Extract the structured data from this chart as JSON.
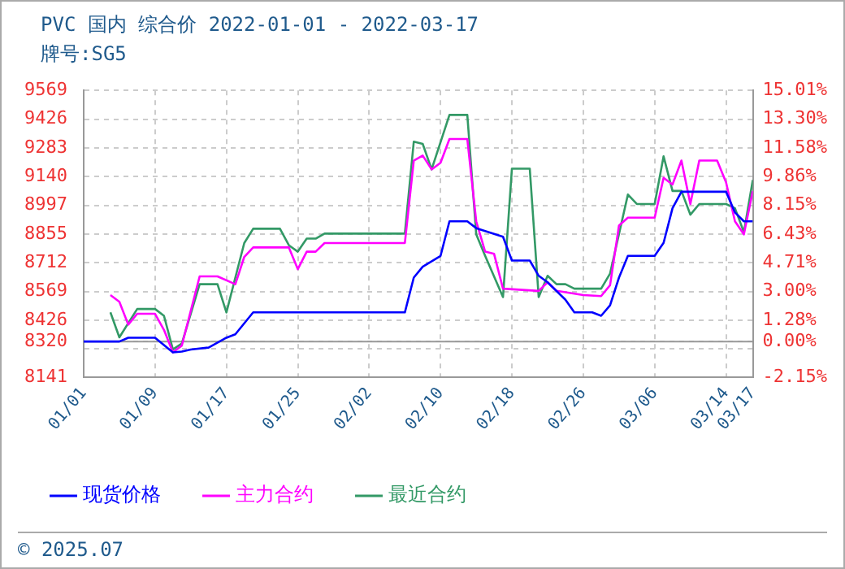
{
  "chart_data": {
    "type": "line",
    "title": "PVC 国内 综合价 2022-01-01 - 2022-03-17",
    "subtitle": "牌号:SG5",
    "annotations": [
      "© 2025.07"
    ],
    "xlim": [
      "2022-01-01",
      "2022-03-17"
    ],
    "xticks": [
      {
        "value": "2022-01-01",
        "label": "01/01"
      },
      {
        "value": "2022-01-09",
        "label": "01/09"
      },
      {
        "value": "2022-01-17",
        "label": "01/17"
      },
      {
        "value": "2022-01-25",
        "label": "01/25"
      },
      {
        "value": "2022-02-02",
        "label": "02/02"
      },
      {
        "value": "2022-02-10",
        "label": "02/10"
      },
      {
        "value": "2022-02-18",
        "label": "02/18"
      },
      {
        "value": "2022-02-26",
        "label": "02/26"
      },
      {
        "value": "2022-03-06",
        "label": "03/06"
      },
      {
        "value": "2022-03-14",
        "label": "03/14"
      },
      {
        "value": "2022-03-17",
        "label": "03/17"
      }
    ],
    "ylim": [
      8141,
      9569
    ],
    "yticks": [
      8141,
      {
        "value": 8283,
        "label": null
      },
      8320,
      8426,
      8569,
      8712,
      8855,
      8997,
      9140,
      9283,
      9426,
      9569
    ],
    "y2lim": [
      -2.15,
      15.01
    ],
    "y2ticks": [
      {
        "value": -2.15,
        "label": "-2.15%"
      },
      {
        "value": 0,
        "label": "0.00%"
      },
      {
        "value": 1.28,
        "label": "1.28%"
      },
      {
        "value": 3.0,
        "label": "3.00%"
      },
      {
        "value": 4.71,
        "label": "4.71%"
      },
      {
        "value": 6.43,
        "label": "6.43%"
      },
      {
        "value": 8.15,
        "label": "8.15%"
      },
      {
        "value": 9.86,
        "label": "9.86%"
      },
      {
        "value": 11.58,
        "label": "11.58%"
      },
      {
        "value": 13.3,
        "label": "13.30%"
      },
      {
        "value": 15.01,
        "label": "15.01%"
      }
    ],
    "ref_lines": [
      {
        "axis": "y",
        "value": 8320,
        "color": "#999999"
      }
    ],
    "grid": true,
    "legend": "bottom",
    "marker": "none",
    "line_style": "solid",
    "series": [
      {
        "name": "现货价格",
        "color": "#0000ff",
        "x": [
          "2022-01-01",
          "2022-01-05",
          "2022-01-06",
          "2022-01-09",
          "2022-01-11",
          "2022-01-12",
          "2022-01-13",
          "2022-01-15",
          "2022-01-17",
          "2022-01-18",
          "2022-01-20",
          "2022-02-06",
          "2022-02-07",
          "2022-02-08",
          "2022-02-10",
          "2022-02-11",
          "2022-02-13",
          "2022-02-14",
          "2022-02-17",
          "2022-02-18",
          "2022-02-20",
          "2022-02-21",
          "2022-02-22",
          "2022-02-24",
          "2022-02-25",
          "2022-02-27",
          "2022-02-28",
          "2022-03-01",
          "2022-03-02",
          "2022-03-03",
          "2022-03-06",
          "2022-03-07",
          "2022-03-08",
          "2022-03-09",
          "2022-03-14",
          "2022-03-15",
          "2022-03-16",
          "2022-03-17"
        ],
        "values": [
          8320,
          8320,
          8339,
          8339,
          8266,
          8270,
          8280,
          8290,
          8339,
          8356,
          8465,
          8465,
          8638,
          8692,
          8746,
          8918,
          8918,
          8884,
          8841,
          8723,
          8723,
          8647,
          8615,
          8528,
          8465,
          8465,
          8448,
          8500,
          8638,
          8746,
          8746,
          8811,
          8983,
          9065,
          9065,
          8962,
          8918,
          8918
        ]
      },
      {
        "name": "主力合约",
        "color": "#ff00ff",
        "x": [
          "2022-01-04",
          "2022-01-05",
          "2022-01-06",
          "2022-01-07",
          "2022-01-09",
          "2022-01-10",
          "2022-01-11",
          "2022-01-12",
          "2022-01-14",
          "2022-01-16",
          "2022-01-18",
          "2022-01-19",
          "2022-01-20",
          "2022-01-24",
          "2022-01-25",
          "2022-01-26",
          "2022-01-27",
          "2022-01-28",
          "2022-02-06",
          "2022-02-07",
          "2022-02-08",
          "2022-02-09",
          "2022-02-10",
          "2022-02-11",
          "2022-02-13",
          "2022-02-14",
          "2022-02-15",
          "2022-02-16",
          "2022-02-17",
          "2022-02-21",
          "2022-02-22",
          "2022-02-23",
          "2022-02-26",
          "2022-02-28",
          "2022-03-01",
          "2022-03-02",
          "2022-03-03",
          "2022-03-06",
          "2022-03-07",
          "2022-03-08",
          "2022-03-09",
          "2022-03-10",
          "2022-03-11",
          "2022-03-13",
          "2022-03-14",
          "2022-03-15",
          "2022-03-16",
          "2022-03-17"
        ],
        "values": [
          8551,
          8518,
          8404,
          8458,
          8458,
          8378,
          8266,
          8300,
          8644,
          8644,
          8605,
          8741,
          8788,
          8788,
          8680,
          8767,
          8767,
          8810,
          8810,
          9220,
          9245,
          9176,
          9209,
          9327,
          9327,
          8918,
          8767,
          8756,
          8583,
          8572,
          8615,
          8572,
          8551,
          8546,
          8600,
          8897,
          8936,
          8936,
          9134,
          9101,
          9220,
          9004,
          9220,
          9220,
          9112,
          8918,
          8853,
          9069
        ]
      },
      {
        "name": "最近合约",
        "color": "#339966",
        "x": [
          "2022-01-04",
          "2022-01-05",
          "2022-01-07",
          "2022-01-09",
          "2022-01-10",
          "2022-01-11",
          "2022-01-12",
          "2022-01-14",
          "2022-01-16",
          "2022-01-17",
          "2022-01-18",
          "2022-01-19",
          "2022-01-20",
          "2022-01-23",
          "2022-01-24",
          "2022-01-25",
          "2022-01-26",
          "2022-01-27",
          "2022-01-28",
          "2022-02-06",
          "2022-02-07",
          "2022-02-08",
          "2022-02-09",
          "2022-02-11",
          "2022-02-13",
          "2022-02-14",
          "2022-02-15",
          "2022-02-17",
          "2022-02-18",
          "2022-02-20",
          "2022-02-21",
          "2022-02-22",
          "2022-02-23",
          "2022-02-24",
          "2022-02-25",
          "2022-02-28",
          "2022-03-01",
          "2022-03-03",
          "2022-03-04",
          "2022-03-06",
          "2022-03-07",
          "2022-03-08",
          "2022-03-09",
          "2022-03-10",
          "2022-03-11",
          "2022-03-14",
          "2022-03-15",
          "2022-03-16",
          "2022-03-17"
        ],
        "values": [
          8465,
          8341,
          8482,
          8482,
          8448,
          8281,
          8310,
          8605,
          8605,
          8465,
          8638,
          8810,
          8881,
          8881,
          8799,
          8767,
          8832,
          8832,
          8857,
          8857,
          9314,
          9303,
          9176,
          9447,
          9447,
          8853,
          8746,
          8541,
          9180,
          9180,
          8541,
          8647,
          8605,
          8605,
          8583,
          8583,
          8658,
          9051,
          9004,
          9004,
          9241,
          9069,
          9069,
          8951,
          9004,
          9004,
          8983,
          8864,
          9123
        ]
      }
    ]
  }
}
